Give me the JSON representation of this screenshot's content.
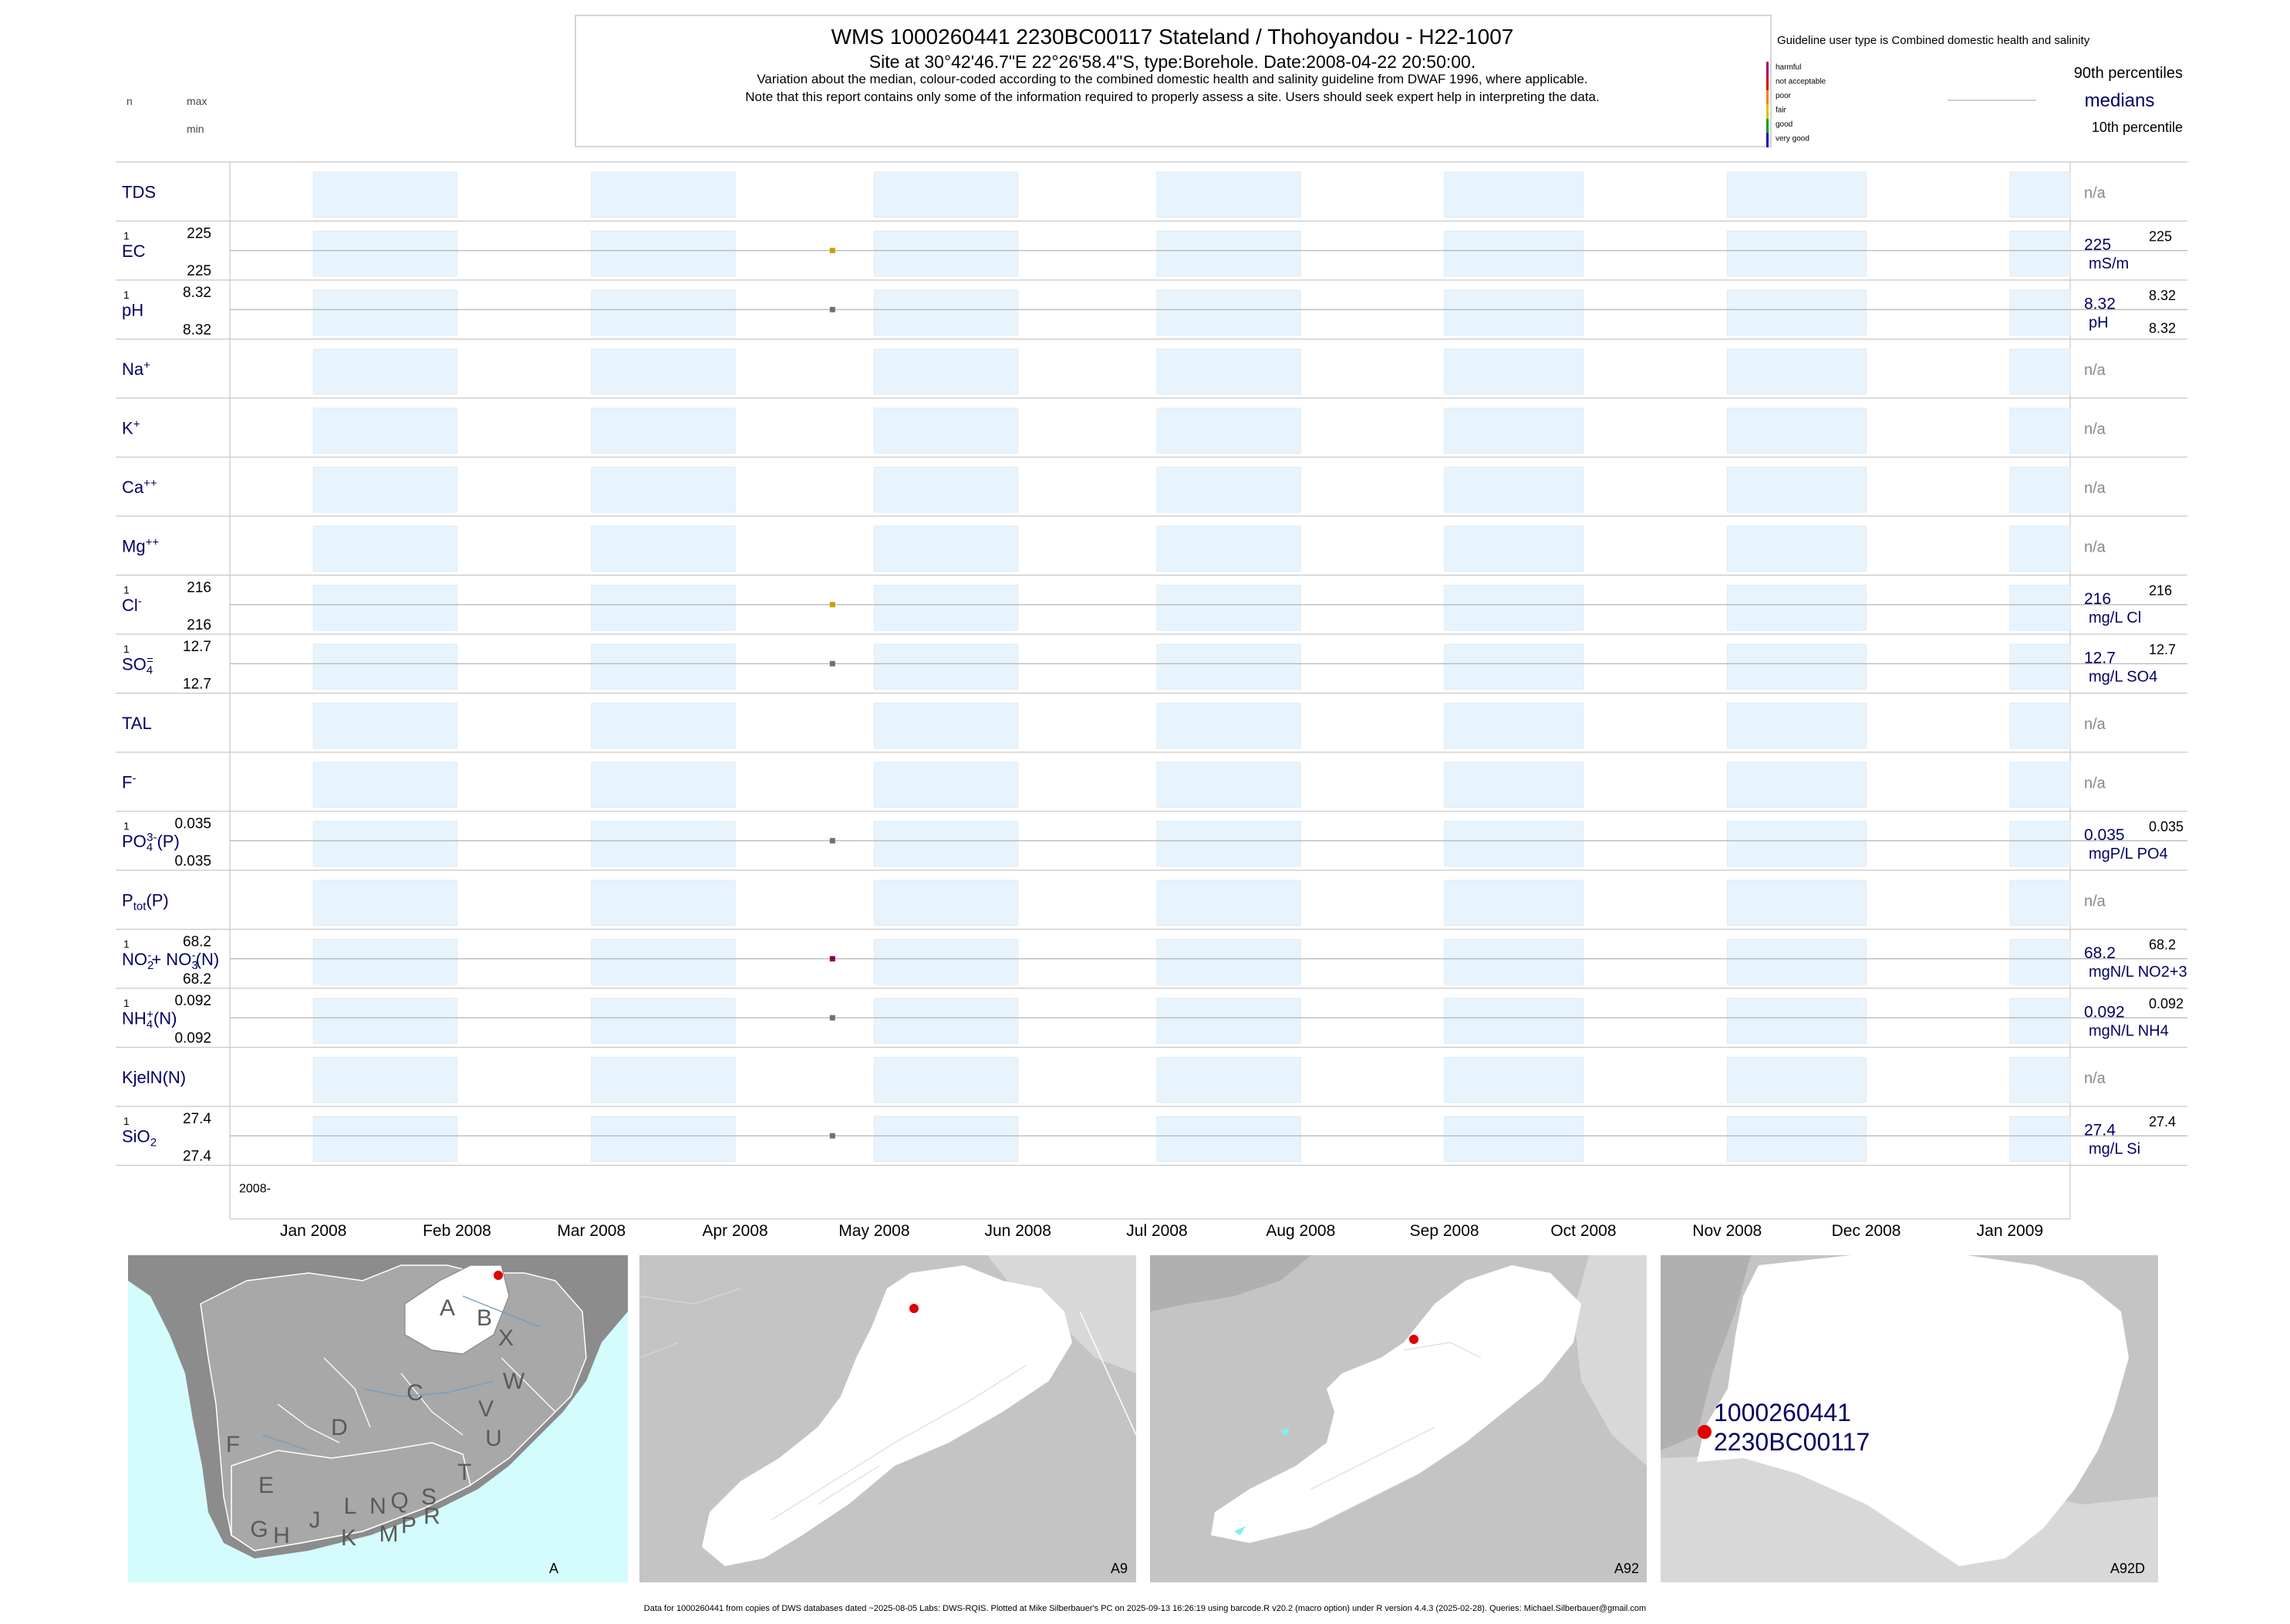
{
  "header": {
    "title": "WMS 1000260441 2230BC00117 Stateland / Thohoyandou - H22-1007",
    "subtitle": "Site at 30°42'46.7\"E 22°26'58.4\"S, type:Borehole. Date:2008-04-22 20:50:00.",
    "line3": "Variation about the median,  colour-coded according to the combined domestic health and salinity guideline from DWAF 1996, where applicable.",
    "line4": "Note that this report contains only some of the information required to properly assess a site. Users should seek expert help in interpreting the data."
  },
  "left_legend": {
    "n": "n",
    "max": "max",
    "min": "min"
  },
  "guideline": {
    "title": "Guideline user type is Combined domestic health and salinity",
    "classes": [
      {
        "label": "harmful",
        "color": "#a0006e"
      },
      {
        "label": "not acceptable",
        "color": "#d40000"
      },
      {
        "label": "poor",
        "color": "#ff7f00"
      },
      {
        "label": "fair",
        "color": "#e0c000"
      },
      {
        "label": "good",
        "color": "#00a000"
      },
      {
        "label": "very good",
        "color": "#0000c8"
      }
    ],
    "p90": "90th percentiles",
    "medians": "medians",
    "p10": "10th percentile"
  },
  "chart_data": {
    "type": "scatter",
    "x_axis": {
      "range": [
        "2007-12-14",
        "2009-01-14"
      ],
      "ticks": [
        "Jan 2008",
        "Feb 2008",
        "Mar 2008",
        "Apr 2008",
        "May 2008",
        "Jun 2008",
        "Jul 2008",
        "Aug 2008",
        "Sep 2008",
        "Oct 2008",
        "Nov 2008",
        "Dec 2008",
        "Jan 2009"
      ],
      "year_label": "2008-"
    },
    "sample_date": "2008-04-22",
    "na_text": "n/a",
    "rows": [
      {
        "label": "TDS",
        "has_data": false
      },
      {
        "label": "EC",
        "has_data": true,
        "n": "1",
        "max": "225",
        "min": "225",
        "median": "225",
        "p90": "225",
        "unit": "mS/m",
        "color": "#c8a000"
      },
      {
        "label": "pH",
        "has_data": true,
        "n": "1",
        "max": "8.32",
        "min": "8.32",
        "median": "8.32",
        "p90": "8.32",
        "p10": "8.32",
        "unit": "pH",
        "color": "#707070"
      },
      {
        "label": "Na",
        "sup": "+",
        "has_data": false
      },
      {
        "label": "K",
        "sup": "+",
        "has_data": false
      },
      {
        "label": "Ca",
        "sup": "++",
        "has_data": false
      },
      {
        "label": "Mg",
        "sup": "++",
        "has_data": false
      },
      {
        "label": "Cl",
        "sup": "-",
        "has_data": true,
        "n": "1",
        "max": "216",
        "min": "216",
        "median": "216",
        "p90": "216",
        "unit": "mg/L Cl",
        "color": "#c8a000"
      },
      {
        "label": "SO",
        "sub": "4",
        "sup": "=",
        "has_data": true,
        "n": "1",
        "max": "12.7",
        "min": "12.7",
        "median": "12.7",
        "p90": "12.7",
        "unit": "mg/L SO4",
        "color": "#707070"
      },
      {
        "label": "TAL",
        "has_data": false
      },
      {
        "label": "F",
        "sup": "-",
        "has_data": false
      },
      {
        "label": "PO",
        "sub": "4",
        "sup": "3-",
        "after": "(P)",
        "has_data": true,
        "n": "1",
        "max": "0.035",
        "min": "0.035",
        "median": "0.035",
        "p90": "0.035",
        "unit": "mgP/L PO4",
        "color": "#707070"
      },
      {
        "label": "P",
        "sub": "tot",
        "after": "(P)",
        "has_data": false
      },
      {
        "label": "NO",
        "sub": "2",
        "sup": "-",
        "after": "+ NO",
        "sub2": "3",
        "sup2": "-",
        "after2": "(N)",
        "has_data": true,
        "n": "1",
        "max": "68.2",
        "min": "68.2",
        "median": "68.2",
        "p90": "68.2",
        "unit": "mgN/L NO2+3",
        "color": "#8b0050"
      },
      {
        "label": "NH",
        "sub": "4",
        "sup": "+",
        "after": "(N)",
        "has_data": true,
        "n": "1",
        "max": "0.092",
        "min": "0.092",
        "median": "0.092",
        "p90": "0.092",
        "unit": "mgN/L NH4",
        "color": "#707070"
      },
      {
        "label": "KjelN(N)",
        "has_data": false
      },
      {
        "label": "SiO",
        "sub": "2",
        "has_data": true,
        "n": "1",
        "max": "27.4",
        "min": "27.4",
        "median": "27.4",
        "p90": "27.4",
        "unit": "mg/L Si",
        "color": "#707070"
      }
    ]
  },
  "maps": [
    {
      "id": "map-a",
      "caption": "A",
      "letters": [
        "A",
        "B",
        "X",
        "W",
        "C",
        "V",
        "D",
        "U",
        "F",
        "E",
        "T",
        "J",
        "L",
        "N",
        "Q",
        "S",
        "R",
        "G",
        "H",
        "K",
        "M",
        "P"
      ]
    },
    {
      "id": "map-a9",
      "caption": "A9"
    },
    {
      "id": "map-a92",
      "caption": "A92"
    },
    {
      "id": "map-a92d",
      "caption": "A92D",
      "site_id": "1000260441",
      "site_code": "2230BC00117"
    }
  ],
  "footer": "Data for 1000260441 from copies of DWS databases dated ~2025-08-05 Labs: DWS-RQIS. Plotted at Mike Silberbauer's PC on 2025-09-13 16:26:19 using barcode.R v20.2 (macro option) under R version 4.4.3 (2025-02-28). Queries: Michael.Silberbauer@gmail.com",
  "colors": {
    "band": "#e8f4fd",
    "label": "#000066",
    "sea": "#d4fcfc",
    "land": "#b0b0b0"
  }
}
